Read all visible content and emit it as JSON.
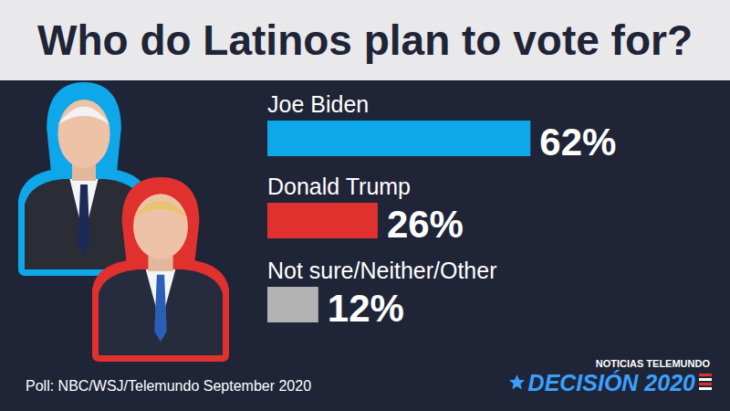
{
  "chart_data": {
    "type": "bar",
    "title": "Who do Latinos plan to vote for?",
    "categories": [
      "Joe Biden",
      "Donald Trump",
      "Not sure/Neither/Other"
    ],
    "values": [
      62,
      26,
      12
    ],
    "value_labels": [
      "62%",
      "26%",
      "12%"
    ],
    "colors": [
      "#0ea7ea",
      "#e0312f",
      "#b3b3b3"
    ],
    "orientation": "horizontal",
    "data_labels": true,
    "xlim": [
      0,
      100
    ],
    "source": "Poll: NBC/WSJ/Telemundo September 2020",
    "annotations": [
      "NOTICIAS TELEMUNDO",
      "DECISIÓN 2020"
    ]
  }
}
